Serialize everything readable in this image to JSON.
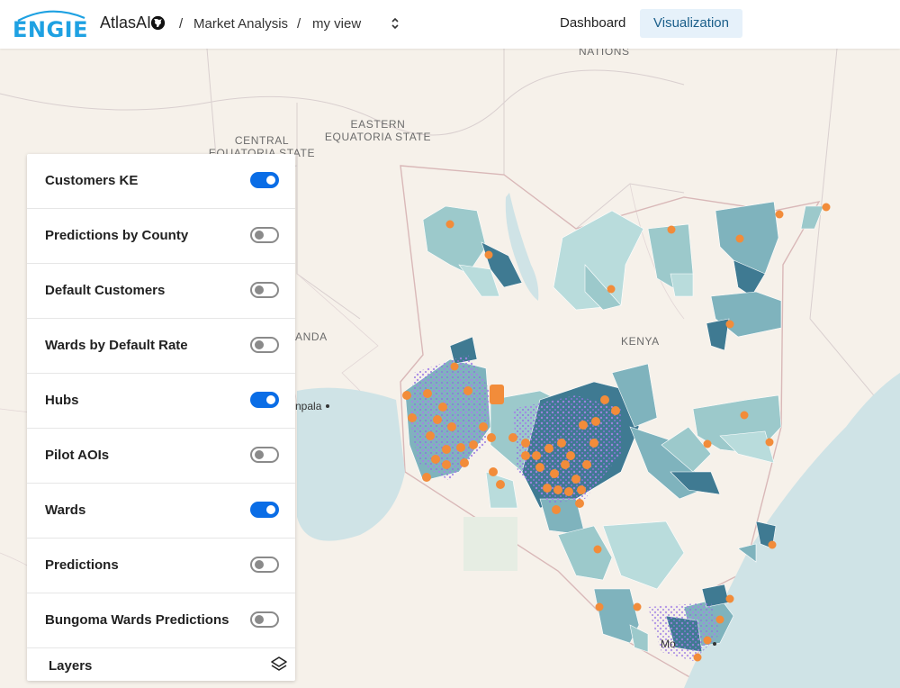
{
  "header": {
    "logo_text": "ENGIE",
    "product_name": "AtlasAI",
    "breadcrumb": [
      "Market Analysis",
      "my view"
    ],
    "separator": "/",
    "nav": [
      {
        "label": "Dashboard",
        "active": false
      },
      {
        "label": "Visualization",
        "active": true
      }
    ]
  },
  "map": {
    "place_labels": {
      "nations": "NATIONS",
      "eastern_equatoria": "EASTERN\nEQUATORIA STATE",
      "central_equatoria": "CENTRAL\nEQUATORIA STATE",
      "kenya": "KENYA",
      "uganda": "ANDA",
      "kampala": "npala",
      "mombasa": "Mo"
    },
    "colors": {
      "land": "#f6f1ea",
      "water": "#cfe3e6",
      "ward_light": "#b9dcdc",
      "ward_mid": "#7fb3bd",
      "ward_dark": "#3f7a92",
      "customer_dots": "#a583e6",
      "hubs": "#f28c3a"
    }
  },
  "layers_panel": {
    "items": [
      {
        "label": "Customers KE",
        "enabled": true
      },
      {
        "label": "Predictions by County",
        "enabled": false
      },
      {
        "label": "Default Customers",
        "enabled": false
      },
      {
        "label": "Wards by Default Rate",
        "enabled": false
      },
      {
        "label": "Hubs",
        "enabled": true
      },
      {
        "label": "Pilot AOIs",
        "enabled": false
      },
      {
        "label": "Wards",
        "enabled": true
      },
      {
        "label": "Predictions",
        "enabled": false
      },
      {
        "label": "Bungoma Wards Predictions",
        "enabled": false
      }
    ],
    "footer_label": "Layers",
    "footer_icon": "layers-icon"
  }
}
